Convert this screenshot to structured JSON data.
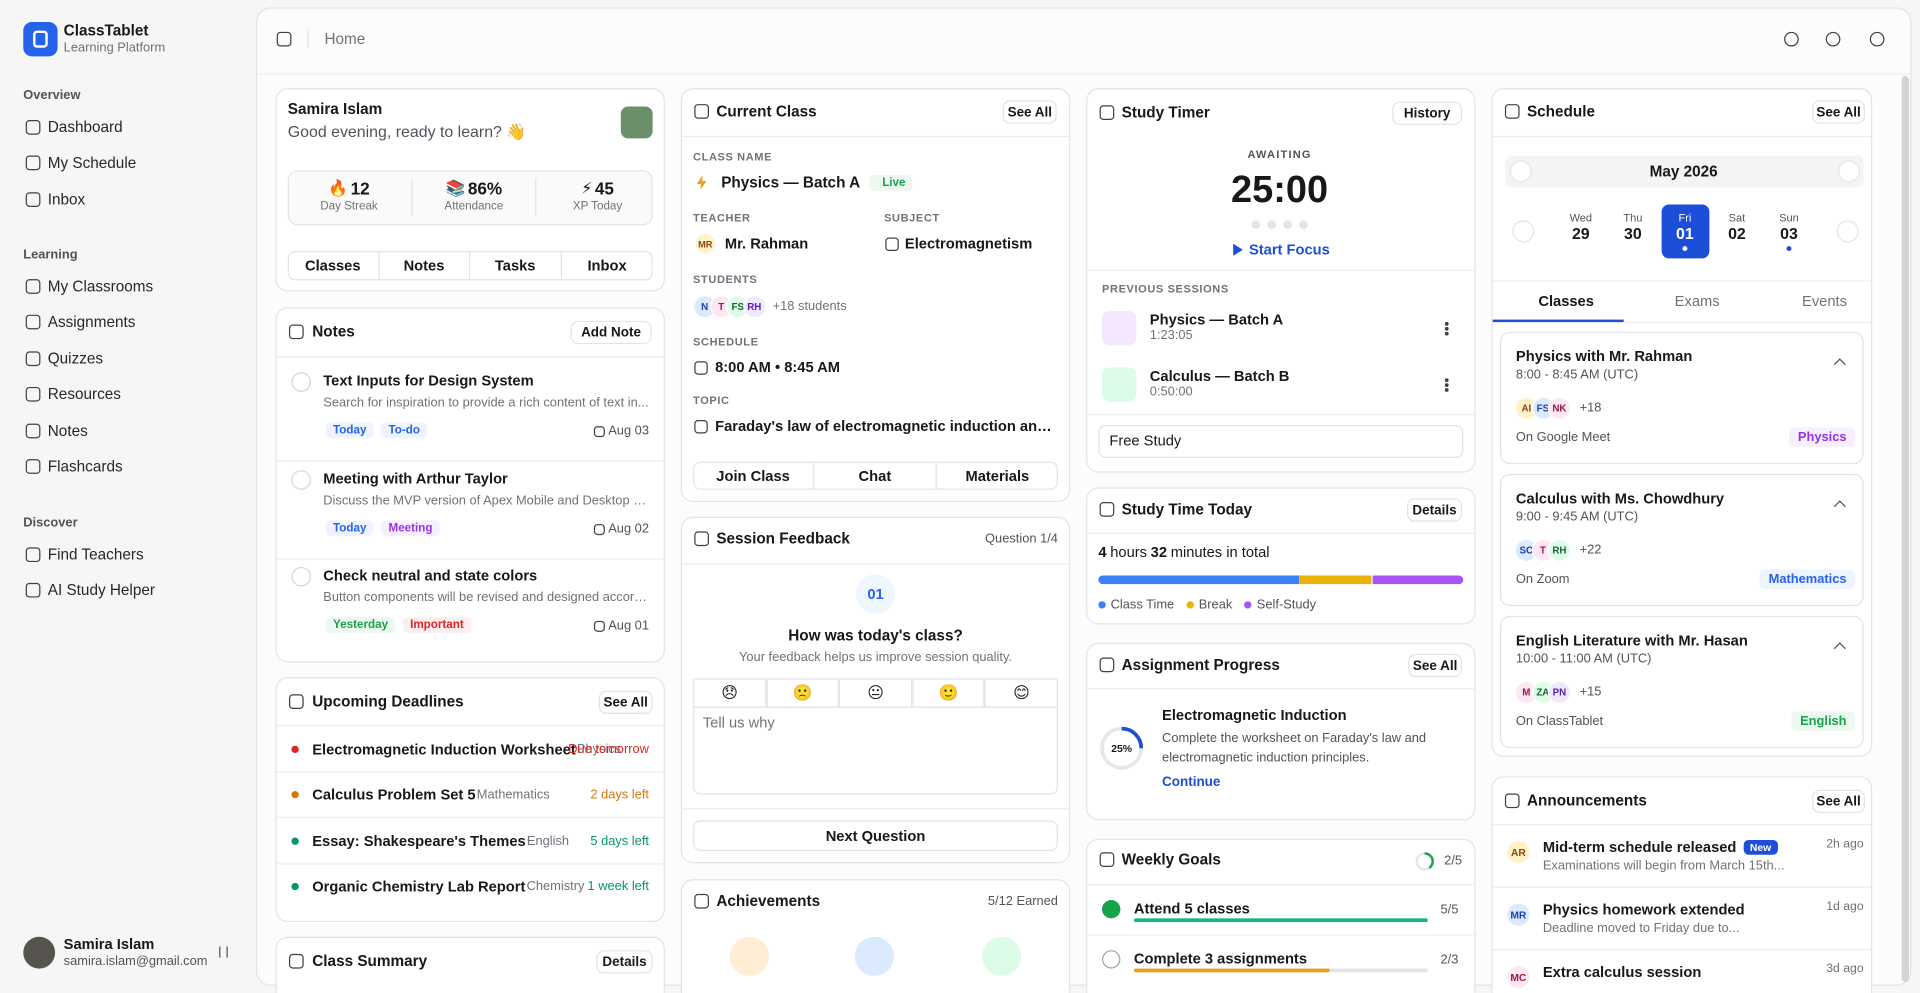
{
  "sidebar": {
    "brand": "ClassTablet",
    "tagline": "Learning Platform",
    "sections": [
      {
        "title": "Overview",
        "items": [
          "Dashboard",
          "My Schedule",
          "Inbox"
        ]
      },
      {
        "title": "Learning",
        "items": [
          "My Classrooms",
          "Assignments",
          "Quizzes",
          "Resources",
          "Notes",
          "Flashcards"
        ]
      },
      {
        "title": "Discover",
        "items": [
          "Find Teachers",
          "AI Study Helper"
        ]
      }
    ],
    "user": {
      "name": "Samira Islam",
      "email": "samira.islam@gmail.com"
    }
  },
  "header": {
    "breadcrumb": "Home"
  },
  "profile": {
    "name": "Samira Islam",
    "greeting": "Good evening, ready to learn? 👋",
    "stats": [
      {
        "icon": "🔥",
        "value": "12",
        "label": "Day Streak"
      },
      {
        "icon": "📚",
        "value": "86%",
        "label": "Attendance"
      },
      {
        "icon": "⚡",
        "value": "45",
        "label": "XP Today"
      }
    ],
    "tabs": [
      "Classes",
      "Notes",
      "Tasks",
      "Inbox"
    ]
  },
  "notes": {
    "title": "Notes",
    "action": "Add Note",
    "items": [
      {
        "title": "Text Inputs for Design System",
        "text": "Search for inspiration to provide a rich content of text in...",
        "tags": [
          {
            "label": "Today",
            "color": "#2563eb"
          },
          {
            "label": "To-do",
            "color": "#2563eb"
          }
        ],
        "date": "Aug 03"
      },
      {
        "title": "Meeting with Arthur Taylor",
        "text": "Discuss the MVP version of Apex Mobile and Desktop app...",
        "tags": [
          {
            "label": "Today",
            "color": "#2563eb"
          },
          {
            "label": "Meeting",
            "color": "#9333ea"
          }
        ],
        "date": "Aug 02"
      },
      {
        "title": "Check neutral and state colors",
        "text": "Button components will be revised and designed accordi...",
        "tags": [
          {
            "label": "Yesterday",
            "color": "#16a34a"
          },
          {
            "label": "Important",
            "color": "#dc2626"
          }
        ],
        "date": "Aug 01"
      }
    ]
  },
  "deadlines": {
    "title": "Upcoming Deadlines",
    "action": "See All",
    "items": [
      {
        "title": "Electromagnetic Induction Worksheet",
        "subject": "Physics",
        "due": "Due tomorrow",
        "color": "#dc2626"
      },
      {
        "title": "Calculus Problem Set 5",
        "subject": "Mathematics",
        "due": "2 days left",
        "color": "#d97706"
      },
      {
        "title": "Essay: Shakespeare's Themes",
        "subject": "English",
        "due": "5 days left",
        "color": "#059669"
      },
      {
        "title": "Organic Chemistry Lab Report",
        "subject": "Chemistry",
        "due": "1 week left",
        "color": "#059669"
      }
    ]
  },
  "class_summary": {
    "title": "Class Summary",
    "action": "Details"
  },
  "current_class": {
    "title": "Current Class",
    "action": "See All",
    "class_label": "CLASS NAME",
    "class_name": "Physics — Batch A",
    "status": "Live",
    "teacher_label": "TEACHER",
    "teacher_initials": "MR",
    "teacher": "Mr. Rahman",
    "subject_label": "SUBJECT",
    "subject": "Electromagnetism",
    "students_label": "STUDENTS",
    "students": [
      "N",
      "T",
      "FS",
      "RH"
    ],
    "students_more": "+18 students",
    "schedule_label": "SCHEDULE",
    "schedule": "8:00 AM • 8:45 AM",
    "topic_label": "TOPIC",
    "topic": "Faraday's law of electromagnetic induction and it",
    "buttons": [
      "Join Class",
      "Chat",
      "Materials"
    ]
  },
  "feedback": {
    "title": "Session Feedback",
    "step": "Question 1/4",
    "number": "01",
    "question": "How was today's class?",
    "subtitle": "Your feedback helps us improve session quality.",
    "ratings": [
      "😞",
      "🙁",
      "😐",
      "🙂",
      "😊"
    ],
    "placeholder": "Tell us why",
    "next": "Next Question"
  },
  "achievements": {
    "title": "Achievements",
    "earned": "5/12 Earned"
  },
  "timer": {
    "title": "Study Timer",
    "action": "History",
    "status": "AWAITING",
    "time": "25:00",
    "start": "Start Focus",
    "sessions_label": "PREVIOUS SESSIONS",
    "sessions": [
      {
        "name": "Physics — Batch A",
        "time": "1:23:05"
      },
      {
        "name": "Calculus — Batch B",
        "time": "0:50:00"
      }
    ],
    "mode": "Free Study"
  },
  "study_today": {
    "title": "Study Time Today",
    "action": "Details",
    "hours": "4",
    "hours_label": "hours",
    "minutes": "32",
    "minutes_label": "minutes in total",
    "segments": [
      {
        "name": "Class Time",
        "color": "#3b82f6",
        "value": 55
      },
      {
        "name": "Break",
        "color": "#eab308",
        "value": 20
      },
      {
        "name": "Self-Study",
        "color": "#a855f7",
        "value": 25
      }
    ]
  },
  "assignment": {
    "title": "Assignment Progress",
    "action": "See All",
    "progress": 25,
    "progress_label": "25%",
    "name": "Electromagnetic Induction",
    "description": "Complete the worksheet on Faraday's law and electromagnetic induction principles.",
    "link": "Continue"
  },
  "goals": {
    "title": "Weekly Goals",
    "label": "2/5",
    "completed": 2,
    "total": 5,
    "items": [
      {
        "name": "Attend 5 classes",
        "label": "5/5",
        "completed": 5,
        "total": 5
      },
      {
        "name": "Complete 3 assignments",
        "label": "2/3",
        "completed": 2,
        "total": 3
      }
    ]
  },
  "schedule": {
    "title": "Schedule",
    "action": "See All",
    "month": "May 2026",
    "days": [
      {
        "dow": "Wed",
        "day": "29"
      },
      {
        "dow": "Thu",
        "day": "30"
      },
      {
        "dow": "Fri",
        "day": "01",
        "selected": true,
        "event": true
      },
      {
        "dow": "Sat",
        "day": "02"
      },
      {
        "dow": "Sun",
        "day": "03",
        "event": true
      }
    ],
    "tabs": [
      "Classes",
      "Exams",
      "Events"
    ],
    "classes": [
      {
        "title": "Physics with Mr. Rahman",
        "time": "8:00 - 8:45 AM (UTC)",
        "avatars": [
          "AI",
          "FS",
          "NK"
        ],
        "more": "+18",
        "platform": "On Google Meet",
        "tag": "Physics",
        "color": "#9333ea"
      },
      {
        "title": "Calculus with Ms. Chowdhury",
        "time": "9:00 - 9:45 AM (UTC)",
        "avatars": [
          "SC",
          "T",
          "RH"
        ],
        "more": "+22",
        "platform": "On Zoom",
        "tag": "Mathematics",
        "color": "#2563eb"
      },
      {
        "title": "English Literature with Mr. Hasan",
        "time": "10:00 - 11:00 AM (UTC)",
        "avatars": [
          "M",
          "ZA",
          "PN"
        ],
        "more": "+15",
        "platform": "On ClassTablet",
        "tag": "English",
        "color": "#16a34a"
      }
    ]
  },
  "announcements": {
    "title": "Announcements",
    "action": "See All",
    "items": [
      {
        "initials": "AR",
        "title": "Mid-term schedule released",
        "badge": "New",
        "text": "Examinations will begin from March 15th...",
        "ago": "2h ago"
      },
      {
        "initials": "MR",
        "title": "Physics homework extended",
        "text": "Deadline moved to Friday due to...",
        "ago": "1d ago"
      },
      {
        "initials": "MC",
        "title": "Extra calculus session",
        "ago": "3d ago"
      }
    ]
  }
}
